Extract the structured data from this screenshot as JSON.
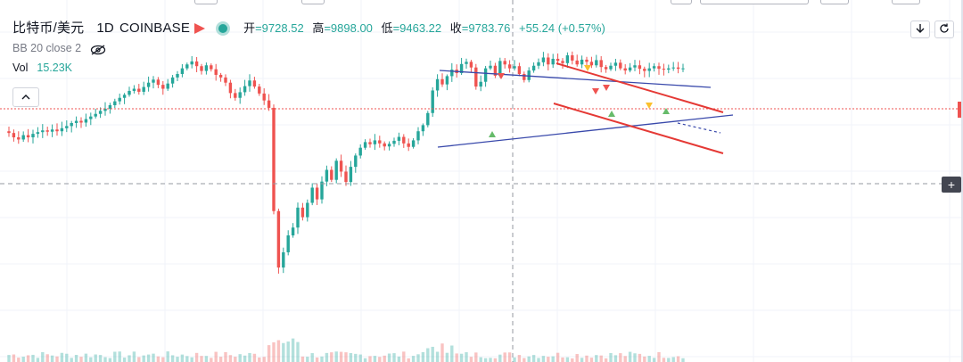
{
  "legend": {
    "symbol": "比特币/美元",
    "timeframe": "1D",
    "exchange": "COINBASE",
    "ohlc": {
      "open_label": "开",
      "open": "=9728.52",
      "high_label": "高",
      "high": "=9898.00",
      "low_label": "低",
      "low": "=9463.22",
      "close_label": "收",
      "close": "=9783.76",
      "change": "+55.24 (+0.57%)"
    },
    "indicator": "BB 20 close 2",
    "volume_label": "Vol",
    "volume_value": "15.23K"
  },
  "colors": {
    "up": "#26a69a",
    "down": "#ef5350",
    "trendline_blue": "#3949ab",
    "channel_red": "#e53935",
    "crosshair": "#9598a1",
    "current_price_line": "#ef5350"
  },
  "icons": {
    "flag": "flag-icon",
    "live": "dot-icon",
    "hide": "eye-off-icon",
    "collapse": "chevron-up-icon",
    "download": "arrow-down-icon",
    "reset": "refresh-icon",
    "crosshair_add": "plus-icon"
  },
  "chart_data": {
    "type": "candlestick",
    "title": "",
    "description_price": "daily closes (estimated, no price axis shown)",
    "closes": [
      4.0,
      3.0,
      2.5,
      3.5,
      3.0,
      3.8,
      4.2,
      4.6,
      4.3,
      4.8,
      4.4,
      5.1,
      5.6,
      6.3,
      6.8,
      6.4,
      7.2,
      7.8,
      8.4,
      9.1,
      9.6,
      10.4,
      11.3,
      12.1,
      12.8,
      13.7,
      14.2,
      13.5,
      14.6,
      15.6,
      16.3,
      15.1,
      14.2,
      15.4,
      16.8,
      17.6,
      18.9,
      19.8,
      20.5,
      19.4,
      18.3,
      19.6,
      18.7,
      17.4,
      16.8,
      15.6,
      13.2,
      12.1,
      13.4,
      14.8,
      16.1,
      14.7,
      13.1,
      11.5,
      9.8,
      -14.0,
      -27.0,
      -23.5,
      -19.6,
      -17.8,
      -13.2,
      -15.4,
      -12.1,
      -8.6,
      -11.3,
      -7.2,
      -4.5,
      -6.8,
      -2.4,
      -4.9,
      -7.3,
      -3.8,
      -1.2,
      0.6,
      1.9,
      1.4,
      2.3,
      1.6,
      0.9,
      1.5,
      2.2,
      3.1,
      1.6,
      0.8,
      2.3,
      4.4,
      5.8,
      8.6,
      13.8,
      16.4,
      15.2,
      17.1,
      18.6,
      17.8,
      19.9,
      20.4,
      19.1,
      14.7,
      15.8,
      18.9,
      19.5,
      17.2,
      20.6,
      19.8,
      18.9,
      19.4,
      17.6,
      16.2,
      18.4,
      19.5,
      20.3,
      21.4,
      19.8,
      21.1,
      20.6,
      20.1,
      21.9,
      20.7,
      19.8,
      20.9,
      20.4,
      19.6,
      20.8,
      19.2,
      18.7,
      19.5,
      20.2,
      18.9,
      18.4,
      19.1,
      19.6,
      18.8,
      18.3,
      18.9,
      19.4,
      18.8,
      18.6,
      18.9,
      19.1,
      18.8,
      18.9
    ]
  }
}
